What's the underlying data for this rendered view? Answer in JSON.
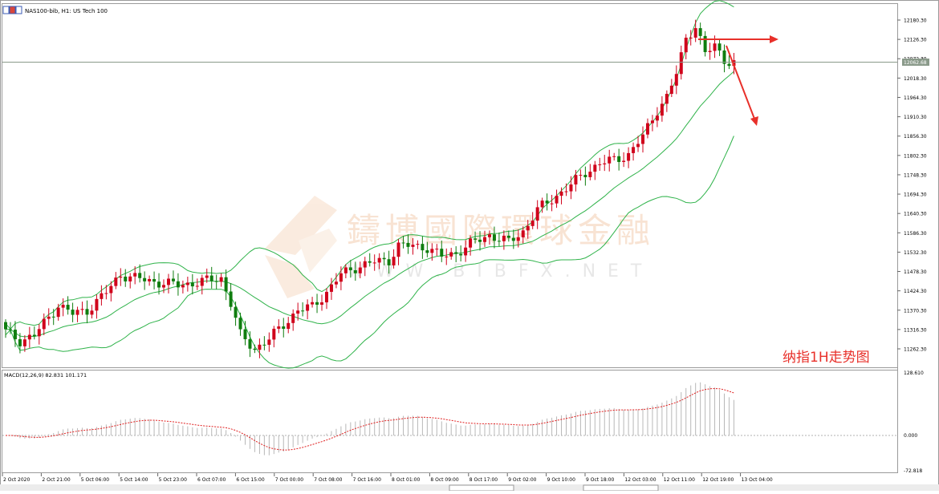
{
  "chart_data": [
    {
      "type": "candlestick",
      "title": "NAS100-bib, H1:  US Tech 100",
      "current_price": "12062.68",
      "ylim": [
        11230,
        12220
      ],
      "y_ticks": [
        "12180.30",
        "12126.30",
        "12072.30",
        "12018.30",
        "11964.30",
        "11910.30",
        "11856.30",
        "11802.30",
        "11748.30",
        "11694.30",
        "11640.30",
        "11586.30",
        "11532.30",
        "11478.30",
        "11424.30",
        "11370.30",
        "11316.30",
        "11262.30"
      ],
      "x_ticks": [
        "2 Oct 2020",
        "2 Oct 21:00",
        "5 Oct 06:00",
        "5 Oct 14:00",
        "5 Oct 23:00",
        "6 Oct 07:00",
        "6 Oct 15:00",
        "7 Oct 00:00",
        "7 Oct 08:00",
        "7 Oct 16:00",
        "8 Oct 01:00",
        "8 Oct 09:00",
        "8 Oct 17:00",
        "9 Oct 02:00",
        "9 Oct 10:00",
        "9 Oct 18:00",
        "12 Oct 03:00",
        "12 Oct 11:00",
        "12 Oct 19:00",
        "13 Oct 04:00"
      ],
      "watermark": "鑄博國際環球金融",
      "watermark_sub": "W W W . B I B F X . N E T",
      "annotation": "纳指1H走势图",
      "colors": {
        "up": "#d0021b",
        "down": "#0f7d0f",
        "bands": "#2fb34a",
        "arrow": "#e8302a"
      },
      "series_close_keypoints": [
        [
          0,
          11310
        ],
        [
          3,
          11285
        ],
        [
          6,
          11300
        ],
        [
          9,
          11350
        ],
        [
          11,
          11385
        ],
        [
          14,
          11360
        ],
        [
          17,
          11370
        ],
        [
          21,
          11420
        ],
        [
          24,
          11470
        ],
        [
          27,
          11460
        ],
        [
          31,
          11450
        ],
        [
          36,
          11440
        ],
        [
          41,
          11450
        ],
        [
          45,
          11460
        ],
        [
          47,
          11390
        ],
        [
          49,
          11300
        ],
        [
          52,
          11262
        ],
        [
          55,
          11290
        ],
        [
          58,
          11330
        ],
        [
          61,
          11370
        ],
        [
          64,
          11380
        ],
        [
          67,
          11420
        ],
        [
          70,
          11470
        ],
        [
          73,
          11490
        ],
        [
          77,
          11505
        ],
        [
          80,
          11510
        ],
        [
          82,
          11550
        ],
        [
          85,
          11550
        ],
        [
          88,
          11545
        ],
        [
          91,
          11520
        ],
        [
          94,
          11530
        ],
        [
          97,
          11555
        ],
        [
          101,
          11580
        ],
        [
          105,
          11560
        ],
        [
          108,
          11590
        ],
        [
          111,
          11650
        ],
        [
          115,
          11690
        ],
        [
          118,
          11720
        ],
        [
          121,
          11755
        ],
        [
          124,
          11780
        ],
        [
          127,
          11790
        ],
        [
          130,
          11805
        ],
        [
          133,
          11855
        ],
        [
          136,
          11930
        ],
        [
          138,
          11965
        ],
        [
          140,
          12030
        ],
        [
          142,
          12130
        ],
        [
          144,
          12165
        ],
        [
          146,
          12085
        ],
        [
          148,
          12110
        ],
        [
          150,
          12070
        ],
        [
          152,
          12060
        ]
      ]
    },
    {
      "type": "macd",
      "label": "MACD(12,26,9) 82.831 101.171",
      "y_ticks": [
        "128.610",
        "0.000",
        "-72.818"
      ],
      "ylim": [
        -72.818,
        128.61
      ],
      "signal_color": "#e02020",
      "hist_color": "#b8b8b8"
    }
  ]
}
